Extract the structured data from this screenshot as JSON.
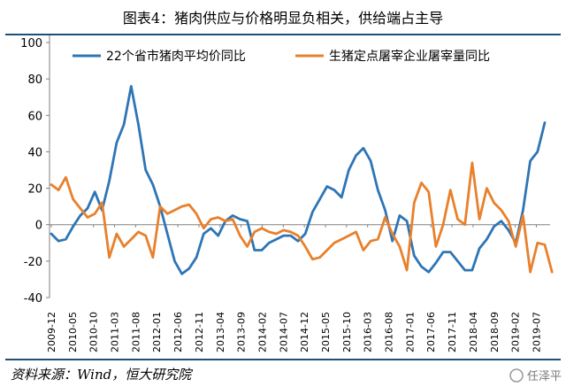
{
  "header": {
    "title": "图表4：猪肉供应与价格明显负相关，供给端占主导"
  },
  "footer": {
    "source": "资料来源：Wind，恒大研究院",
    "watermark": "任泽平"
  },
  "colors": {
    "series1": "#2E75B6",
    "series2": "#E8802C",
    "rule": "#1F4E79",
    "axis": "#808080"
  },
  "chart_data": {
    "type": "line",
    "title": "",
    "xlabel": "",
    "ylabel": "",
    "ylim": [
      -40,
      100
    ],
    "yticks": [
      100,
      80,
      60,
      40,
      20,
      0,
      -20,
      -40
    ],
    "xticks": [
      "2009-12",
      "2010-05",
      "2010-10",
      "2011-03",
      "2011-08",
      "2012-01",
      "2012-06",
      "2012-11",
      "2013-04",
      "2013-09",
      "2014-02",
      "2014-07",
      "2014-12",
      "2015-05",
      "2015-10",
      "2016-03",
      "2016-08",
      "2017-01",
      "2017-06",
      "2017-11",
      "2018-04",
      "2018-09",
      "2019-02",
      "2019-07"
    ],
    "legend_position": "top",
    "grid": false,
    "x_start": "2009-12",
    "x_end": "2019-09",
    "series": [
      {
        "name": "22个省市猪肉平均价同比",
        "color": "#2E75B6",
        "values": [
          -5,
          -9,
          -8,
          -1,
          5,
          9,
          18,
          8,
          24,
          45,
          55,
          76,
          55,
          30,
          22,
          10,
          -5,
          -20,
          -27,
          -24,
          -18,
          -5,
          -2,
          -6,
          2,
          5,
          3,
          2,
          -14,
          -14,
          -10,
          -8,
          -6,
          -6,
          -9,
          -5,
          7,
          14,
          21,
          19,
          15,
          30,
          38,
          42,
          35,
          19,
          8,
          -9,
          5,
          2,
          -17,
          -23,
          -26,
          -21,
          -15,
          -15,
          -20,
          -25,
          -25,
          -13,
          -8,
          -1,
          2,
          -3,
          -10,
          8,
          35,
          40,
          56
        ]
      },
      {
        "name": "生猪定点屠宰企业屠宰量同比",
        "color": "#E8802C",
        "values": [
          22,
          19,
          26,
          14,
          9,
          4,
          6,
          12,
          -18,
          -5,
          -12,
          -8,
          -4,
          -6,
          -18,
          10,
          6,
          8,
          10,
          11,
          6,
          -2,
          3,
          4,
          2,
          3,
          -6,
          -12,
          -4,
          -2,
          -4,
          -5,
          -3,
          -4,
          -6,
          -12,
          -19,
          -18,
          -14,
          -10,
          -8,
          -6,
          -4,
          -14,
          -9,
          -8,
          4,
          -5,
          -12,
          -25,
          12,
          23,
          18,
          -12,
          0,
          19,
          3,
          0,
          34,
          3,
          20,
          12,
          8,
          2,
          -12,
          5,
          -26,
          -10,
          -11,
          -26
        ]
      }
    ]
  }
}
